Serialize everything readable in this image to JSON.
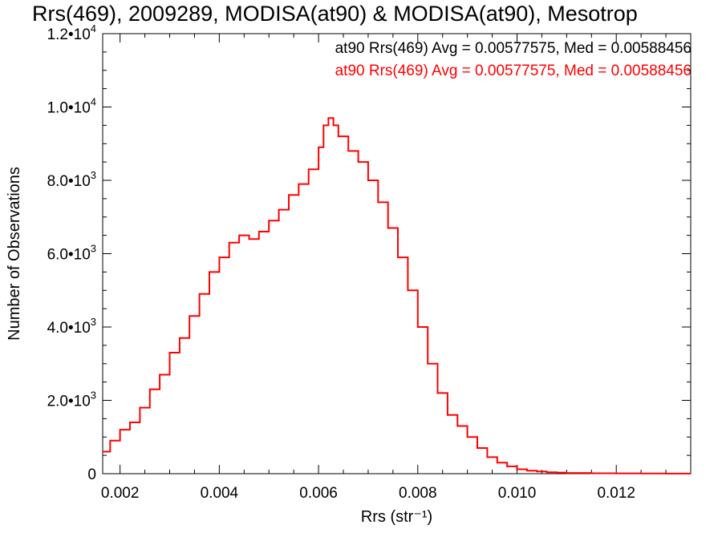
{
  "title": "Rrs(469), 2009289, MODISA(at90) & MODISA(at90), Mesotrop",
  "stats": [
    {
      "text": "at90 Rrs(469) Avg = 0.00577575, Med = 0.00588456",
      "color": "#000000"
    },
    {
      "text": "at90 Rrs(469) Avg = 0.00577575, Med = 0.00588456",
      "color": "#ff0000"
    }
  ],
  "chart_data": {
    "type": "line",
    "style": "step histogram",
    "xlabel": "Rrs (str⁻¹)",
    "ylabel": "Number of Observations",
    "xlim": [
      0.00165,
      0.0135
    ],
    "ylim": [
      0,
      12000
    ],
    "xticks": [
      0.002,
      0.004,
      0.006,
      0.008,
      0.01,
      0.012
    ],
    "xtick_labels": [
      "0.002",
      "0.004",
      "0.006",
      "0.008",
      "0.010",
      "0.012"
    ],
    "yticks": [
      0,
      2000,
      4000,
      6000,
      8000,
      10000,
      12000
    ],
    "ytick_labels": [
      {
        "mant": "0",
        "exp": ""
      },
      {
        "mant": "2.0•10",
        "exp": "3"
      },
      {
        "mant": "4.0•10",
        "exp": "3"
      },
      {
        "mant": "6.0•10",
        "exp": "3"
      },
      {
        "mant": "8.0•10",
        "exp": "3"
      },
      {
        "mant": "1.0•10",
        "exp": "4"
      },
      {
        "mant": "1.2•10",
        "exp": "4"
      }
    ],
    "grid": false,
    "series": [
      {
        "color": "#ff0000",
        "x": [
          0.00165,
          0.0018,
          0.002,
          0.0022,
          0.0024,
          0.0026,
          0.0028,
          0.003,
          0.0032,
          0.0034,
          0.0036,
          0.0038,
          0.004,
          0.0042,
          0.0044,
          0.0046,
          0.0048,
          0.005,
          0.0052,
          0.0054,
          0.0056,
          0.0058,
          0.006,
          0.0061,
          0.0062,
          0.0063,
          0.0064,
          0.0066,
          0.0068,
          0.007,
          0.0072,
          0.0074,
          0.0076,
          0.0078,
          0.008,
          0.0082,
          0.0084,
          0.0086,
          0.0088,
          0.009,
          0.0092,
          0.0094,
          0.0096,
          0.0098,
          0.01,
          0.0102,
          0.0104,
          0.0106,
          0.0108,
          0.011,
          0.0115,
          0.012,
          0.0125,
          0.013,
          0.0135
        ],
        "values": [
          600,
          900,
          1200,
          1400,
          1800,
          2300,
          2700,
          3300,
          3700,
          4300,
          4900,
          5500,
          5900,
          6300,
          6500,
          6400,
          6600,
          6900,
          7200,
          7600,
          7900,
          8300,
          8900,
          9500,
          9700,
          9500,
          9200,
          8800,
          8500,
          8000,
          7400,
          6700,
          5900,
          5000,
          4000,
          3000,
          2200,
          1600,
          1300,
          1000,
          700,
          450,
          300,
          200,
          120,
          80,
          60,
          40,
          30,
          20,
          12,
          8,
          5,
          3,
          2
        ]
      }
    ]
  }
}
